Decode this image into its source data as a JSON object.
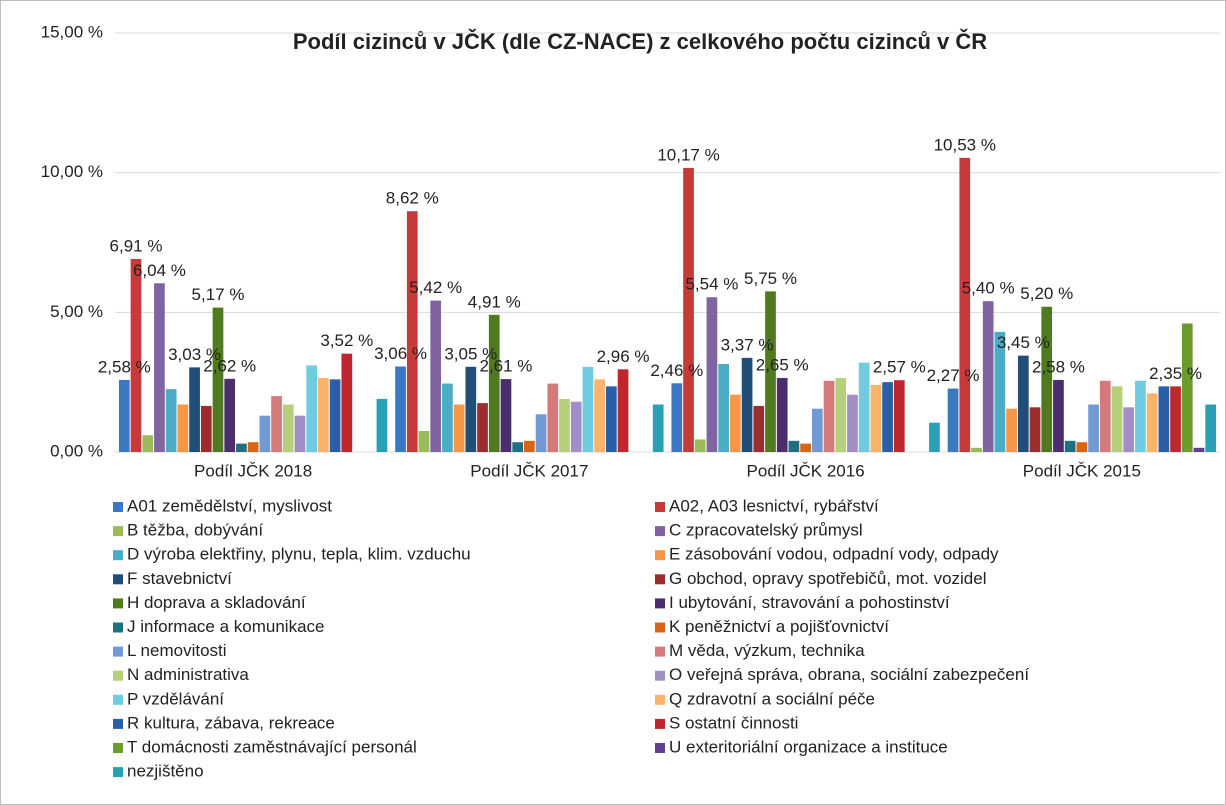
{
  "chart_data": {
    "type": "bar",
    "title": "Podíl cizinců v JČK (dle CZ-NACE) z celkového počtu cizinců v ČR",
    "categories": [
      "Podíl JČK 2018",
      "Podíl JČK 2017",
      "Podíl JČK 2016",
      "Podíl JČK 2015"
    ],
    "ylim": [
      0,
      15
    ],
    "yticks": [
      {
        "value": 0,
        "label": "0,00 %"
      },
      {
        "value": 5,
        "label": "5,00 %"
      },
      {
        "value": 10,
        "label": "10,00 %"
      },
      {
        "value": 15,
        "label": "15,00 %"
      }
    ],
    "grid": true,
    "legend": "bottom",
    "series": [
      {
        "name": "A01  zemědělství, myslivost",
        "color": "#3a78c2",
        "values": [
          2.58,
          3.06,
          2.46,
          2.27
        ],
        "value_labels": [
          "2,58 %",
          "3,06 %",
          "2,46 %",
          "2,27 %"
        ]
      },
      {
        "name": "A02, A03  lesnictví, rybářství",
        "color": "#c83a3a",
        "values": [
          6.91,
          8.62,
          10.17,
          10.53
        ],
        "value_labels": [
          "6,91 %",
          "8,62 %",
          "10,17 %",
          "10,53 %"
        ]
      },
      {
        "name": "B  těžba, dobývání",
        "color": "#9bbb59",
        "values": [
          0.6,
          0.75,
          0.45,
          0.15
        ]
      },
      {
        "name": "C  zpracovatelský průmysl",
        "color": "#8064a2",
        "values": [
          6.04,
          5.42,
          5.54,
          5.4
        ],
        "value_labels": [
          "6,04 %",
          "5,42 %",
          "5,54 %",
          "5,40 %"
        ]
      },
      {
        "name": "D  výroba elektřiny, plynu, tepla, klim. vzduchu",
        "color": "#4bacc6",
        "values": [
          2.25,
          2.45,
          3.15,
          4.3
        ]
      },
      {
        "name": "E  zásobování vodou, odpadní vody, odpady",
        "color": "#f79646",
        "values": [
          1.7,
          1.7,
          2.05,
          1.55
        ]
      },
      {
        "name": "F  stavebnictví",
        "color": "#1f4e79",
        "values": [
          3.03,
          3.05,
          3.37,
          3.45
        ],
        "value_labels": [
          "3,03 %",
          "3,05 %",
          "3,37 %",
          "3,45 %"
        ]
      },
      {
        "name": "G  obchod, opravy spotřebičů, mot. vozidel",
        "color": "#9b2d2d",
        "values": [
          1.65,
          1.75,
          1.65,
          1.6
        ]
      },
      {
        "name": "H  doprava a skladování",
        "color": "#4f7a1f",
        "values": [
          5.17,
          4.91,
          5.75,
          5.2
        ],
        "value_labels": [
          "5,17 %",
          "4,91 %",
          "5,75 %",
          "5,20 %"
        ]
      },
      {
        "name": "I  ubytování, stravování a pohostinství",
        "color": "#4b2e6b",
        "values": [
          2.62,
          2.61,
          2.65,
          2.58
        ],
        "value_labels": [
          "2,62 %",
          "2,61 %",
          "2,65 %",
          "2,58 %"
        ]
      },
      {
        "name": "J  informace a komunikace",
        "color": "#1f6f80",
        "values": [
          0.3,
          0.35,
          0.4,
          0.4
        ]
      },
      {
        "name": "K  peněžnictví a pojišťovnictví",
        "color": "#d86414",
        "values": [
          0.35,
          0.4,
          0.3,
          0.35
        ]
      },
      {
        "name": "L  nemovitosti",
        "color": "#6f9ad4",
        "values": [
          1.3,
          1.35,
          1.55,
          1.7
        ]
      },
      {
        "name": "M  věda, výzkum, technika",
        "color": "#d47a7a",
        "values": [
          2.0,
          2.45,
          2.55,
          2.55
        ]
      },
      {
        "name": "N  administrativa",
        "color": "#b5cf7a",
        "values": [
          1.7,
          1.9,
          2.65,
          2.35
        ]
      },
      {
        "name": "O  veřejná správa, obrana, sociální zabezpečení",
        "color": "#a18ec4",
        "values": [
          1.3,
          1.8,
          2.05,
          1.6
        ]
      },
      {
        "name": "P  vzdělávání",
        "color": "#6fcbe0",
        "values": [
          3.1,
          3.05,
          3.2,
          2.55
        ]
      },
      {
        "name": "Q  zdravotní a sociální péče",
        "color": "#f9b46a",
        "values": [
          2.65,
          2.6,
          2.4,
          2.1
        ]
      },
      {
        "name": "R  kultura, zábava, rekreace",
        "color": "#2a5ea8",
        "values": [
          2.6,
          2.35,
          2.5,
          2.35
        ]
      },
      {
        "name": "S  ostatní činnosti",
        "color": "#c0262d",
        "values": [
          3.52,
          2.96,
          2.57,
          2.35
        ],
        "value_labels": [
          "3,52 %",
          "2,96 %",
          "2,57 %",
          "2,35 %"
        ]
      },
      {
        "name": "T  domácnosti zaměstnávající personál",
        "color": "#6b9a2e",
        "values": [
          0,
          0,
          0,
          4.6
        ]
      },
      {
        "name": "U  exteritoriální organizace a instituce",
        "color": "#5f3f8f",
        "values": [
          0,
          0,
          0,
          0.15
        ]
      },
      {
        "name": "nezjištěno",
        "color": "#2aa0b5",
        "values": [
          1.9,
          1.7,
          1.05,
          1.7
        ]
      }
    ]
  }
}
